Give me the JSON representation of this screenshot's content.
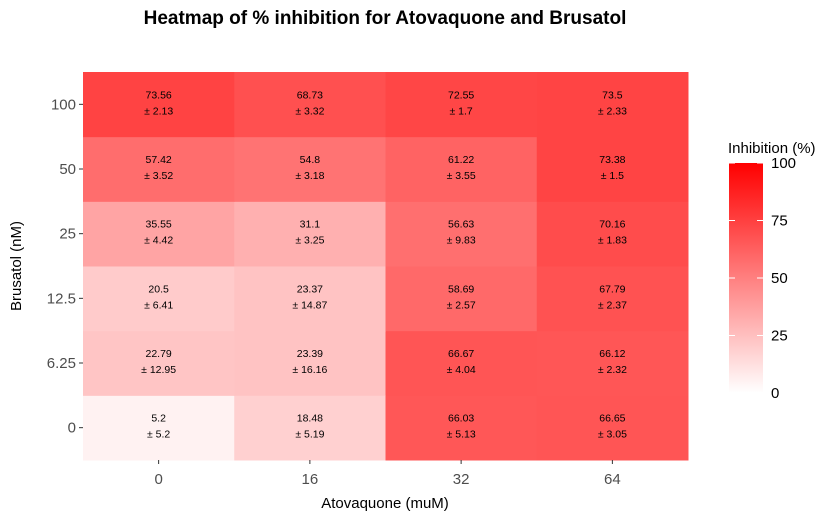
{
  "chart_data": {
    "type": "heatmap",
    "title": "Heatmap of % inhibition for Atovaquone and Brusatol",
    "xlabel": "Atovaquone (muM)",
    "ylabel": "Brusatol (nM)",
    "x_categories": [
      "0",
      "16",
      "32",
      "64"
    ],
    "y_categories": [
      "0",
      "6.25",
      "12.5",
      "25",
      "50",
      "100"
    ],
    "values": [
      [
        5.2,
        18.48,
        66.03,
        66.65
      ],
      [
        22.79,
        23.39,
        66.67,
        66.12
      ],
      [
        20.5,
        23.37,
        58.69,
        67.79
      ],
      [
        35.55,
        31.1,
        56.63,
        70.16
      ],
      [
        57.42,
        54.8,
        61.22,
        73.38
      ],
      [
        73.56,
        68.73,
        72.55,
        73.5
      ]
    ],
    "errors": [
      [
        5.2,
        5.19,
        5.13,
        3.05
      ],
      [
        12.95,
        16.16,
        4.04,
        2.32
      ],
      [
        6.41,
        14.87,
        2.57,
        2.37
      ],
      [
        4.42,
        3.25,
        9.83,
        1.83
      ],
      [
        3.52,
        3.18,
        3.55,
        1.5
      ],
      [
        2.13,
        3.32,
        1.7,
        2.33
      ]
    ],
    "error_prefix": "± ",
    "legend": {
      "title": "Inhibition (%)",
      "min": 0,
      "max": 100,
      "ticks": [
        "0",
        "25",
        "50",
        "75",
        "100"
      ],
      "placement": "right"
    },
    "color_low": "#ffffff",
    "color_high": "#ff0000",
    "grid": false
  }
}
